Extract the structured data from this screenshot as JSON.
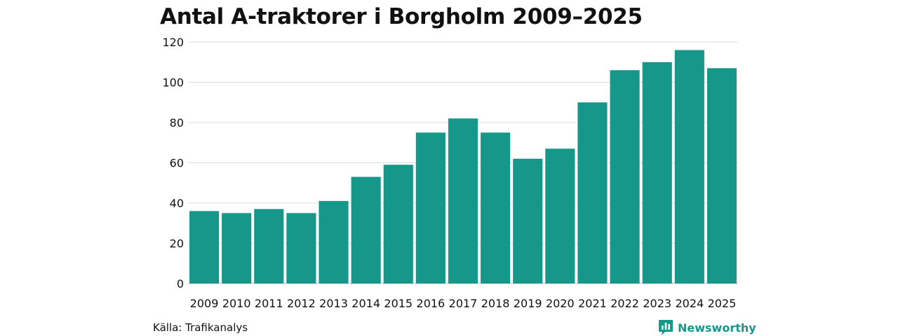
{
  "chart_data": {
    "type": "bar",
    "title": "Antal A-traktorer i Borgholm 2009–2025",
    "categories": [
      "2009",
      "2010",
      "2011",
      "2012",
      "2013",
      "2014",
      "2015",
      "2016",
      "2017",
      "2018",
      "2019",
      "2020",
      "2021",
      "2022",
      "2023",
      "2024",
      "2025"
    ],
    "values": [
      36,
      35,
      37,
      35,
      41,
      53,
      59,
      75,
      82,
      75,
      62,
      67,
      90,
      106,
      110,
      116,
      107
    ],
    "xlabel": "",
    "ylabel": "",
    "ylim": [
      0,
      120
    ],
    "yticks": [
      0,
      20,
      40,
      60,
      80,
      100,
      120
    ],
    "grid": "horizontal",
    "bar_color": "#15978a"
  },
  "footer": {
    "source": "Källa: Trafikanalys",
    "brand": "Newsworthy",
    "brand_icon": "newsworthy-logo-icon",
    "brand_color": "#15998a"
  }
}
